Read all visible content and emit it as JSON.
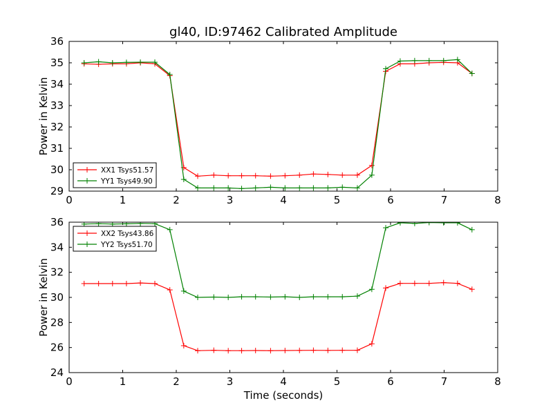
{
  "figure_title": "gl40, ID:97462 Calibrated Amplitude",
  "chart_data": [
    {
      "type": "line",
      "title": "gl40, ID:97462 Calibrated Amplitude",
      "xlabel": "",
      "ylabel": "Power in Kelvin",
      "xlim": [
        0,
        8
      ],
      "ylim": [
        29,
        36
      ],
      "xticks": [
        "0",
        "1",
        "2",
        "3",
        "4",
        "5",
        "6",
        "7",
        "8"
      ],
      "yticks": [
        "29",
        "30",
        "31",
        "32",
        "33",
        "34",
        "35",
        "36"
      ],
      "legend_position": "lower-left",
      "grid": false,
      "x": [
        0.28,
        0.55,
        0.81,
        1.07,
        1.33,
        1.6,
        1.88,
        2.14,
        2.4,
        2.7,
        2.97,
        3.22,
        3.48,
        3.76,
        4.03,
        4.3,
        4.56,
        4.83,
        5.1,
        5.38,
        5.65,
        5.91,
        6.18,
        6.45,
        6.72,
        6.99,
        7.25,
        7.52
      ],
      "series": [
        {
          "name": "XX1 Tsys51.57",
          "color": "#ff0000",
          "values": [
            34.95,
            34.93,
            34.95,
            34.95,
            35.0,
            34.95,
            34.4,
            30.1,
            29.7,
            29.75,
            29.72,
            29.72,
            29.72,
            29.7,
            29.72,
            29.75,
            29.8,
            29.78,
            29.75,
            29.75,
            30.2,
            34.6,
            34.95,
            34.95,
            35.0,
            35.02,
            35.0,
            34.5
          ]
        },
        {
          "name": "YY1 Tsys49.90",
          "color": "#008000",
          "values": [
            35.0,
            35.05,
            35.0,
            35.02,
            35.03,
            35.03,
            34.45,
            29.55,
            29.15,
            29.15,
            29.15,
            29.12,
            29.15,
            29.18,
            29.15,
            29.15,
            29.15,
            29.15,
            29.18,
            29.15,
            29.75,
            34.72,
            35.08,
            35.1,
            35.1,
            35.1,
            35.15,
            34.5
          ]
        }
      ]
    },
    {
      "type": "line",
      "title": "",
      "xlabel": "Time (seconds)",
      "ylabel": "Power in Kelvin",
      "xlim": [
        0,
        8
      ],
      "ylim": [
        24,
        36
      ],
      "xticks": [
        "0",
        "1",
        "2",
        "3",
        "4",
        "5",
        "6",
        "7",
        "8"
      ],
      "yticks": [
        "24",
        "26",
        "28",
        "30",
        "32",
        "34",
        "36"
      ],
      "legend_position": "upper-left",
      "grid": false,
      "x": [
        0.28,
        0.55,
        0.81,
        1.07,
        1.33,
        1.6,
        1.88,
        2.14,
        2.4,
        2.7,
        2.97,
        3.22,
        3.48,
        3.76,
        4.03,
        4.3,
        4.56,
        4.83,
        5.1,
        5.38,
        5.65,
        5.91,
        6.18,
        6.45,
        6.72,
        6.99,
        7.25,
        7.52
      ],
      "series": [
        {
          "name": "XX2 Tsys43.86",
          "color": "#ff0000",
          "values": [
            31.1,
            31.1,
            31.1,
            31.1,
            31.15,
            31.1,
            30.6,
            26.15,
            25.75,
            25.78,
            25.75,
            25.75,
            25.76,
            25.75,
            25.76,
            25.77,
            25.78,
            25.77,
            25.78,
            25.78,
            26.3,
            30.75,
            31.12,
            31.12,
            31.12,
            31.18,
            31.12,
            30.65
          ]
        },
        {
          "name": "YY2 Tsys51.70",
          "color": "#008000",
          "values": [
            35.85,
            35.88,
            35.85,
            35.87,
            35.9,
            35.88,
            35.4,
            30.5,
            30.0,
            30.03,
            30.0,
            30.05,
            30.05,
            30.03,
            30.05,
            30.0,
            30.05,
            30.05,
            30.05,
            30.1,
            30.65,
            35.55,
            35.95,
            35.9,
            35.97,
            35.95,
            35.95,
            35.4
          ]
        }
      ]
    }
  ]
}
